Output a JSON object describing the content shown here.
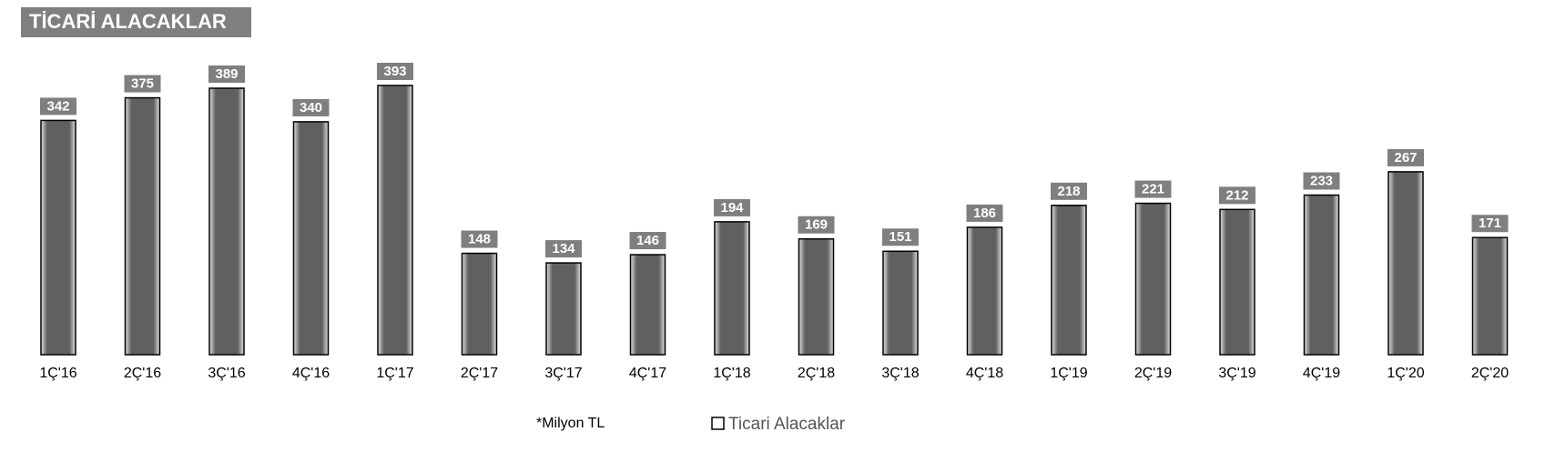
{
  "chart_data": {
    "type": "bar",
    "title": "TİCARİ ALACAKLAR",
    "categories": [
      "1Ç'16",
      "2Ç'16",
      "3Ç'16",
      "4Ç'16",
      "1Ç'17",
      "2Ç'17",
      "3Ç'17",
      "4Ç'17",
      "1Ç'18",
      "2Ç'18",
      "3Ç'18",
      "4Ç'18",
      "1Ç'19",
      "2Ç'19",
      "3Ç'19",
      "4Ç'19",
      "1Ç'20",
      "2Ç'20"
    ],
    "series": [
      {
        "name": "Ticari Alacaklar",
        "color": "#606060",
        "values": [
          342,
          375,
          389,
          340,
          393,
          148,
          134,
          146,
          194,
          169,
          151,
          186,
          218,
          221,
          212,
          233,
          267,
          171
        ]
      }
    ],
    "note": "*Milyon TL"
  }
}
